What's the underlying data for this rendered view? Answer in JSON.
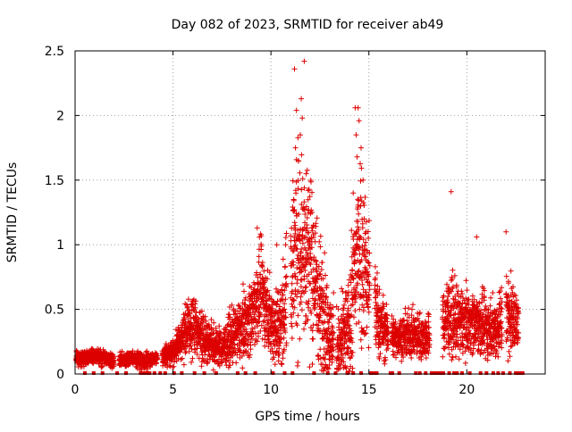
{
  "chart_data": {
    "type": "scatter",
    "title": "Day 082 of 2023, SRMTID for receiver ab49",
    "xlabel": "GPS time / hours",
    "ylabel": "SRMTID / TECUs",
    "xlim": [
      0,
      24
    ],
    "ylim": [
      0,
      2.5
    ],
    "xticks": [
      0,
      5,
      10,
      15,
      20
    ],
    "yticks": [
      0,
      0.5,
      1,
      1.5,
      2,
      2.5
    ],
    "grid": true,
    "marker": "+",
    "color": "#dd0000",
    "series_name": "SRMTID",
    "keypoints": [
      [
        0.0,
        0.12,
        0.06
      ],
      [
        0.5,
        0.13,
        0.05
      ],
      [
        1.0,
        0.14,
        0.05
      ],
      [
        1.5,
        0.12,
        0.05
      ],
      [
        2.0,
        0.1,
        0.05
      ],
      [
        2.5,
        0.11,
        0.05
      ],
      [
        3.0,
        0.12,
        0.05
      ],
      [
        3.5,
        0.1,
        0.05
      ],
      [
        4.0,
        0.12,
        0.05
      ],
      [
        4.5,
        0.14,
        0.06
      ],
      [
        5.0,
        0.17,
        0.08
      ],
      [
        5.5,
        0.3,
        0.15
      ],
      [
        6.0,
        0.38,
        0.2
      ],
      [
        6.5,
        0.3,
        0.18
      ],
      [
        7.0,
        0.22,
        0.14
      ],
      [
        7.5,
        0.2,
        0.12
      ],
      [
        8.0,
        0.28,
        0.18
      ],
      [
        8.5,
        0.35,
        0.2
      ],
      [
        9.0,
        0.45,
        0.25
      ],
      [
        9.5,
        0.65,
        0.3
      ],
      [
        10.0,
        0.4,
        0.25
      ],
      [
        10.5,
        0.35,
        0.3
      ],
      [
        11.0,
        0.85,
        0.55
      ],
      [
        11.5,
        1.05,
        0.7
      ],
      [
        12.0,
        0.9,
        0.6
      ],
      [
        12.5,
        0.55,
        0.45
      ],
      [
        13.0,
        0.3,
        0.3
      ],
      [
        13.5,
        0.2,
        0.25
      ],
      [
        14.0,
        0.35,
        0.35
      ],
      [
        14.5,
        1.05,
        0.7
      ],
      [
        15.0,
        0.7,
        0.45
      ],
      [
        15.5,
        0.4,
        0.25
      ],
      [
        16.0,
        0.3,
        0.15
      ],
      [
        16.5,
        0.28,
        0.12
      ],
      [
        17.0,
        0.3,
        0.15
      ],
      [
        17.5,
        0.3,
        0.15
      ],
      [
        18.0,
        0.28,
        0.15
      ],
      [
        18.5,
        0.3,
        0.18
      ],
      [
        19.0,
        0.45,
        0.25
      ],
      [
        19.5,
        0.4,
        0.25
      ],
      [
        20.0,
        0.4,
        0.2
      ],
      [
        20.5,
        0.4,
        0.2
      ],
      [
        21.0,
        0.35,
        0.2
      ],
      [
        21.5,
        0.35,
        0.2
      ],
      [
        22.0,
        0.5,
        0.3
      ],
      [
        22.5,
        0.4,
        0.2
      ]
    ],
    "outliers": [
      [
        11.2,
        2.36
      ],
      [
        11.7,
        2.42
      ],
      [
        11.55,
        2.13
      ],
      [
        11.3,
        2.04
      ],
      [
        11.6,
        1.98
      ],
      [
        11.5,
        1.85
      ],
      [
        11.25,
        1.75
      ],
      [
        11.4,
        1.65
      ],
      [
        11.8,
        1.55
      ],
      [
        11.9,
        1.42
      ],
      [
        14.3,
        2.06
      ],
      [
        14.45,
        2.06
      ],
      [
        14.5,
        1.96
      ],
      [
        14.35,
        1.85
      ],
      [
        14.6,
        1.75
      ],
      [
        14.4,
        1.68
      ],
      [
        14.7,
        1.5
      ],
      [
        14.2,
        1.4
      ],
      [
        19.2,
        1.41
      ],
      [
        20.5,
        1.06
      ],
      [
        22.0,
        1.1
      ],
      [
        9.3,
        1.13
      ],
      [
        10.3,
        1.0
      ],
      [
        13.6,
        0.66
      ],
      [
        17.2,
        0.5
      ]
    ],
    "gaps": [
      [
        2.0,
        2.25
      ],
      [
        4.2,
        4.45
      ],
      [
        10.8,
        11.0
      ],
      [
        13.2,
        13.35
      ],
      [
        15.05,
        15.3
      ],
      [
        16.0,
        16.15
      ],
      [
        18.1,
        18.75
      ],
      [
        21.8,
        22.0
      ],
      [
        22.7,
        24.0
      ]
    ],
    "zero_markers": [
      0.5,
      0.95,
      1.4,
      2.15,
      2.6,
      3.35,
      3.5,
      3.65,
      3.8,
      4.05,
      4.35,
      4.6,
      5.05,
      5.45,
      6.1,
      6.6,
      7.2,
      8.3,
      8.7,
      9.2,
      10.1,
      10.7,
      11.1,
      12.2,
      12.9,
      13.3,
      13.9,
      14.2,
      14.6,
      15.1,
      15.25,
      15.4,
      16.1,
      16.2,
      16.55,
      17.4,
      17.6,
      17.9,
      18.2,
      18.35,
      18.5,
      18.65,
      18.8,
      19.1,
      19.35,
      19.5,
      19.75,
      20.15,
      20.7,
      21.0,
      21.35,
      21.6,
      21.85,
      22.2,
      22.5,
      22.65,
      22.75,
      22.85
    ],
    "samples_per_hour": 200
  }
}
